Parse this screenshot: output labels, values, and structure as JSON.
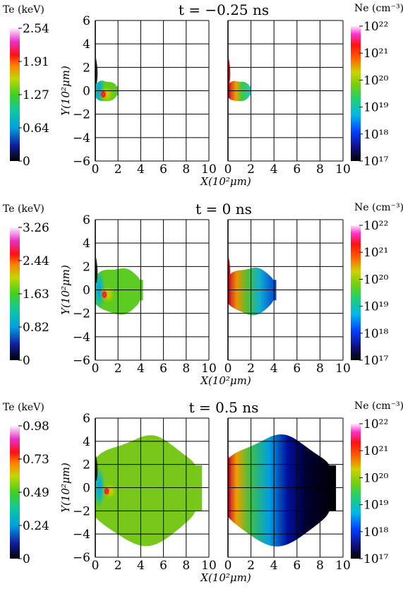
{
  "chart_data": [
    {
      "type": "heatmap",
      "title": "t = −0.25 ns",
      "panels": [
        {
          "quantity": "Te",
          "colorbar_label": "Te (keV)",
          "colorbar_ticks": [
            "2.54",
            "1.91",
            "1.27",
            "0.64",
            "0"
          ],
          "range": [
            0,
            2.54
          ]
        },
        {
          "quantity": "Ne",
          "colorbar_label": "Ne (cm⁻³)",
          "colorbar_ticks": [
            "10²²",
            "10²¹",
            "10²⁰",
            "10¹⁹",
            "10¹⁸",
            "10¹⁷"
          ],
          "range": [
            1e+17,
            1e+22
          ],
          "scale": "log"
        }
      ],
      "xlabel": "X(10²μm)",
      "ylabel": "Y(10²μm)",
      "x_ticks": [
        "0",
        "2",
        "4",
        "6",
        "8",
        "10"
      ],
      "y_ticks": [
        "6",
        "4",
        "2",
        "0",
        "−2",
        "−4",
        "−6"
      ],
      "xlim": [
        0,
        10
      ],
      "ylim": [
        -6,
        6
      ],
      "grid": true,
      "plasma_extent_x": 2.0,
      "plasma_halfwidth_y": 0.9,
      "hotspot": [
        0.7,
        -0.3
      ]
    },
    {
      "type": "heatmap",
      "title": "t = 0 ns",
      "panels": [
        {
          "quantity": "Te",
          "colorbar_label": "Te (keV)",
          "colorbar_ticks": [
            "3.26",
            "2.44",
            "1.63",
            "0.82",
            "0"
          ],
          "range": [
            0,
            3.26
          ]
        },
        {
          "quantity": "Ne",
          "colorbar_label": "Ne (cm⁻³)",
          "colorbar_ticks": [
            "10²²",
            "10²¹",
            "10²⁰",
            "10¹⁹",
            "10¹⁸",
            "10¹⁷"
          ],
          "range": [
            1e+17,
            1e+22
          ],
          "scale": "log"
        }
      ],
      "xlabel": "X(10²μm)",
      "ylabel": "Y(10²μm)",
      "x_ticks": [
        "0",
        "2",
        "4",
        "6",
        "8",
        "10"
      ],
      "y_ticks": [
        "6",
        "4",
        "2",
        "0",
        "−2",
        "−4",
        "−6"
      ],
      "xlim": [
        0,
        10
      ],
      "ylim": [
        -6,
        6
      ],
      "grid": true,
      "plasma_extent_x": 4.2,
      "plasma_halfwidth_y": 2.0,
      "hotspot": [
        0.8,
        -0.4
      ]
    },
    {
      "type": "heatmap",
      "title": "t = 0.5 ns",
      "panels": [
        {
          "quantity": "Te",
          "colorbar_label": "Te (keV)",
          "colorbar_ticks": [
            "0.98",
            "0.73",
            "0.49",
            "0.24",
            "0"
          ],
          "range": [
            0,
            0.98
          ]
        },
        {
          "quantity": "Ne",
          "colorbar_label": "Ne (cm⁻³)",
          "colorbar_ticks": [
            "10²²",
            "10²¹",
            "10²⁰",
            "10¹⁹",
            "10¹⁸",
            "10¹⁷"
          ],
          "range": [
            1e+17,
            1e+22
          ],
          "scale": "log"
        }
      ],
      "xlabel": "X(10²μm)",
      "ylabel": "Y(10²μm)",
      "x_ticks": [
        "0",
        "2",
        "4",
        "6",
        "8",
        "10"
      ],
      "y_ticks": [
        "6",
        "4",
        "2",
        "0",
        "−2",
        "−4",
        "−6"
      ],
      "xlim": [
        0,
        10
      ],
      "ylim": [
        -6,
        6
      ],
      "grid": true,
      "plasma_extent_x": 9.4,
      "plasma_halfwidth_y": 4.5,
      "hotspot": [
        1.0,
        -0.3
      ]
    }
  ]
}
